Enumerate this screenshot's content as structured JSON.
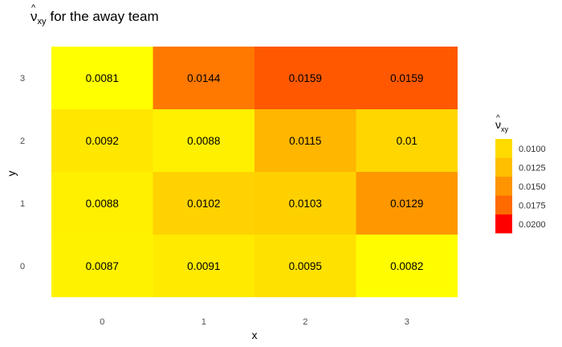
{
  "chart_data": {
    "type": "heatmap",
    "title": {
      "symbol": "ν",
      "hat": "^",
      "subscript": "xy",
      "text": "for the away team"
    },
    "xlabel": "x",
    "ylabel": "y",
    "x": [
      "0",
      "1",
      "2",
      "3"
    ],
    "y": [
      "0",
      "1",
      "2",
      "3"
    ],
    "values": [
      [
        0.0087,
        0.0091,
        0.0095,
        0.0082
      ],
      [
        0.0088,
        0.0102,
        0.0103,
        0.0129
      ],
      [
        0.0092,
        0.0088,
        0.0115,
        0.01
      ],
      [
        0.0081,
        0.0144,
        0.0159,
        0.0159
      ]
    ],
    "value_labels": [
      [
        "0.0087",
        "0.0091",
        "0.0095",
        "0.0082"
      ],
      [
        "0.0088",
        "0.0102",
        "0.0103",
        "0.0129"
      ],
      [
        "0.0092",
        "0.0088",
        "0.0115",
        "0.01"
      ],
      [
        "0.0081",
        "0.0144",
        "0.0159",
        "0.0159"
      ]
    ],
    "grid": false,
    "legend": {
      "position": "right",
      "title": {
        "symbol": "ν",
        "hat": "^",
        "subscript": "xy"
      },
      "breaks": [
        "0.0100",
        "0.0125",
        "0.0150",
        "0.0175",
        "0.0200"
      ],
      "colors": [
        "#ffdb00",
        "#ffbf00",
        "#ff9400",
        "#ff6a00",
        "#ff0000"
      ]
    },
    "color_scale": {
      "low": "#ffff00",
      "high": "#ff0000",
      "min": 0.0081,
      "max": 0.02
    }
  }
}
